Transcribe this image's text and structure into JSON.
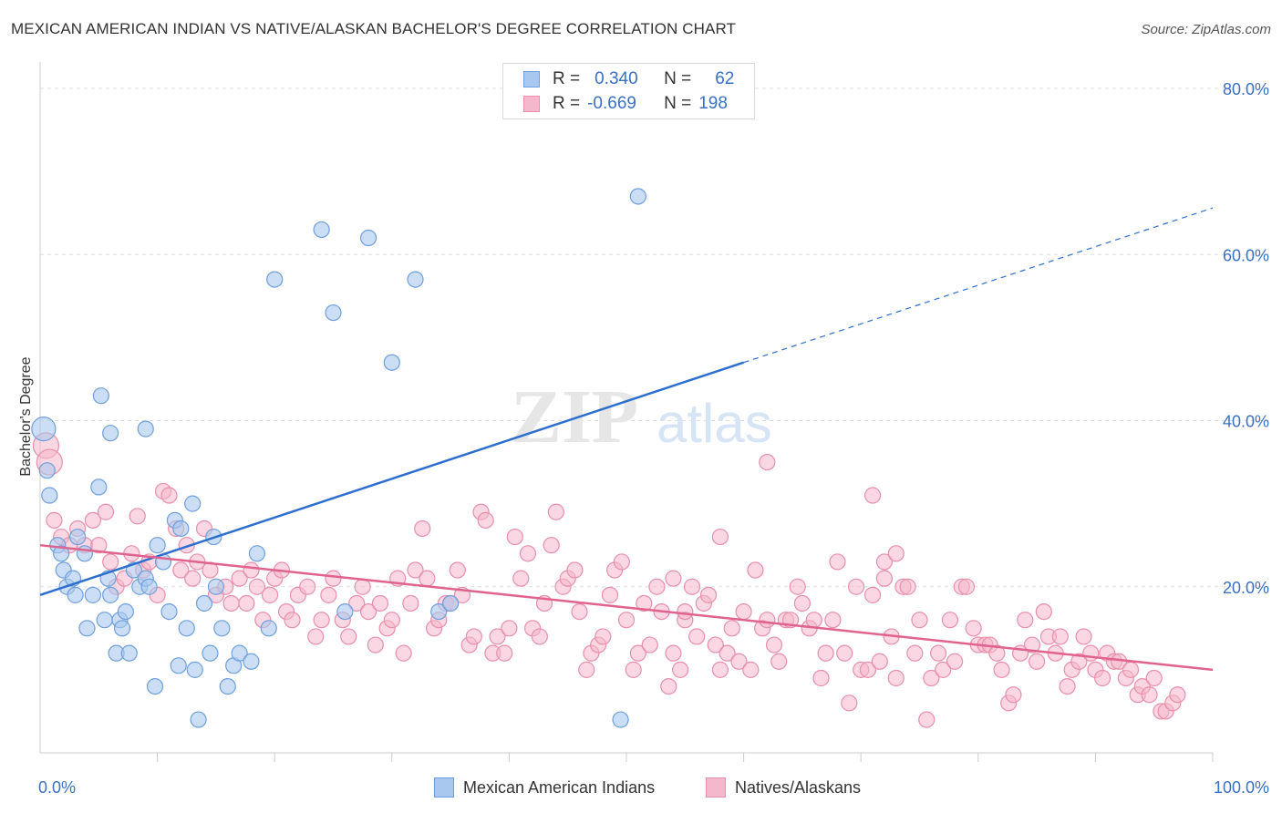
{
  "title": "MEXICAN AMERICAN INDIAN VS NATIVE/ALASKAN BACHELOR'S DEGREE CORRELATION CHART",
  "source": "Source: ZipAtlas.com",
  "watermark": {
    "zip": "ZIP",
    "atlas": "atlas"
  },
  "legend": {
    "rows": [
      {
        "r_label": "R =",
        "r_value": "0.340",
        "n_label": "N =",
        "n_value": "62"
      },
      {
        "r_label": "R =",
        "r_value": "-0.669",
        "n_label": "N =",
        "n_value": "198"
      }
    ]
  },
  "bottom_legend": {
    "series1": "Mexican American Indians",
    "series2": "Natives/Alaskans"
  },
  "colors": {
    "blue_fill": "#a9c8ef",
    "blue_stroke": "#6f9fdc",
    "blue_line": "#2e6fce",
    "pink_fill": "#f5b7cb",
    "pink_stroke": "#e78fab",
    "pink_line": "#e0628f",
    "grid": "#dddddd",
    "tick_text": "#3a70c2"
  },
  "chart_data": {
    "type": "scatter",
    "title": "MEXICAN AMERICAN INDIAN VS NATIVE/ALASKAN BACHELOR'S DEGREE CORRELATION CHART",
    "xlabel": "",
    "ylabel": "Bachelor's Degree",
    "xlim": [
      0,
      100
    ],
    "ylim": [
      0,
      80
    ],
    "x_ticks": [
      "0.0%",
      "100.0%"
    ],
    "y_ticks": [
      "20.0%",
      "40.0%",
      "60.0%",
      "80.0%"
    ],
    "y_tick_values": [
      20,
      40,
      60,
      80
    ],
    "grid": true,
    "series": [
      {
        "name": "Mexican American Indians",
        "R": 0.34,
        "N": 62,
        "trend": {
          "x0": 0,
          "y0": 19.0,
          "x1": 60,
          "y1": 47.0,
          "dash_x1": 100,
          "dash_y1": 65.6
        },
        "points": [
          [
            0.3,
            39
          ],
          [
            0.6,
            34
          ],
          [
            0.8,
            31
          ],
          [
            1.5,
            25
          ],
          [
            1.8,
            24
          ],
          [
            2,
            22
          ],
          [
            2.3,
            20
          ],
          [
            2.8,
            21
          ],
          [
            3,
            19
          ],
          [
            3.2,
            26
          ],
          [
            3.8,
            24
          ],
          [
            4,
            15
          ],
          [
            4.5,
            19
          ],
          [
            5,
            32
          ],
          [
            5.2,
            43
          ],
          [
            5.5,
            16
          ],
          [
            5.8,
            21
          ],
          [
            6,
            19
          ],
          [
            6.5,
            12
          ],
          [
            6.8,
            16
          ],
          [
            7,
            15
          ],
          [
            7.3,
            17
          ],
          [
            7.6,
            12
          ],
          [
            8,
            22
          ],
          [
            8.5,
            20
          ],
          [
            9,
            21
          ],
          [
            9.3,
            20
          ],
          [
            9.8,
            8
          ],
          [
            10,
            25
          ],
          [
            10.5,
            23
          ],
          [
            11,
            17
          ],
          [
            11.5,
            28
          ],
          [
            11.8,
            10.5
          ],
          [
            12,
            27
          ],
          [
            12.5,
            15
          ],
          [
            13,
            30
          ],
          [
            13.2,
            10
          ],
          [
            13.5,
            4
          ],
          [
            14,
            18
          ],
          [
            14.5,
            12
          ],
          [
            14.8,
            26
          ],
          [
            15,
            20
          ],
          [
            15.5,
            15
          ],
          [
            16,
            8
          ],
          [
            16.5,
            10.5
          ],
          [
            17,
            12
          ],
          [
            18,
            11
          ],
          [
            18.5,
            24
          ],
          [
            19.5,
            15
          ],
          [
            20,
            57
          ],
          [
            24,
            63
          ],
          [
            25,
            53
          ],
          [
            26,
            17
          ],
          [
            28,
            62
          ],
          [
            30,
            47
          ],
          [
            32,
            57
          ],
          [
            34,
            17
          ],
          [
            35,
            18
          ],
          [
            49.5,
            4
          ],
          [
            51,
            67
          ],
          [
            6,
            38.5
          ],
          [
            9,
            39
          ]
        ]
      },
      {
        "name": "Natives/Alaskans",
        "R": -0.669,
        "N": 198,
        "trend": {
          "x0": 0,
          "y0": 25,
          "x1": 100,
          "y1": 10
        },
        "points": [
          [
            0.5,
            37
          ],
          [
            0.8,
            35
          ],
          [
            1.2,
            28
          ],
          [
            1.8,
            26
          ],
          [
            2.5,
            25
          ],
          [
            3.2,
            27
          ],
          [
            3.8,
            25
          ],
          [
            4.5,
            28
          ],
          [
            5,
            25
          ],
          [
            5.6,
            29
          ],
          [
            6,
            23
          ],
          [
            6.5,
            20
          ],
          [
            7.2,
            21
          ],
          [
            7.8,
            24
          ],
          [
            8.3,
            28.5
          ],
          [
            8.8,
            22
          ],
          [
            9.3,
            23
          ],
          [
            10,
            19
          ],
          [
            10.5,
            31.5
          ],
          [
            11,
            31
          ],
          [
            11.6,
            27
          ],
          [
            12,
            22
          ],
          [
            12.5,
            25
          ],
          [
            13,
            21
          ],
          [
            13.4,
            23
          ],
          [
            14,
            27
          ],
          [
            14.5,
            22
          ],
          [
            15,
            19
          ],
          [
            15.8,
            20
          ],
          [
            16.3,
            18
          ],
          [
            17,
            21
          ],
          [
            17.6,
            18
          ],
          [
            18,
            22
          ],
          [
            18.5,
            20
          ],
          [
            19,
            16
          ],
          [
            19.6,
            19
          ],
          [
            20,
            21
          ],
          [
            20.6,
            22
          ],
          [
            21,
            17
          ],
          [
            21.5,
            16
          ],
          [
            22,
            19
          ],
          [
            22.8,
            20
          ],
          [
            23.5,
            14
          ],
          [
            24,
            16
          ],
          [
            24.6,
            19
          ],
          [
            25,
            21
          ],
          [
            25.8,
            16
          ],
          [
            26.3,
            14
          ],
          [
            27,
            18
          ],
          [
            27.5,
            20
          ],
          [
            28,
            17
          ],
          [
            28.6,
            13
          ],
          [
            29,
            18
          ],
          [
            29.6,
            15
          ],
          [
            30,
            16
          ],
          [
            30.5,
            21
          ],
          [
            31,
            12
          ],
          [
            31.6,
            18
          ],
          [
            32,
            22
          ],
          [
            32.6,
            27
          ],
          [
            33,
            21
          ],
          [
            33.6,
            15
          ],
          [
            34,
            16
          ],
          [
            34.6,
            18
          ],
          [
            35,
            18
          ],
          [
            35.6,
            22
          ],
          [
            36,
            19
          ],
          [
            36.6,
            13
          ],
          [
            37,
            14
          ],
          [
            37.6,
            29
          ],
          [
            38,
            28
          ],
          [
            38.6,
            12
          ],
          [
            39,
            14
          ],
          [
            39.6,
            12
          ],
          [
            40,
            15
          ],
          [
            40.5,
            26
          ],
          [
            41,
            21
          ],
          [
            41.6,
            24
          ],
          [
            42,
            15
          ],
          [
            42.6,
            14
          ],
          [
            43,
            18
          ],
          [
            43.6,
            25
          ],
          [
            44,
            29
          ],
          [
            44.6,
            20
          ],
          [
            45,
            21
          ],
          [
            45.6,
            22
          ],
          [
            46,
            17
          ],
          [
            46.6,
            10
          ],
          [
            47,
            12
          ],
          [
            47.6,
            13
          ],
          [
            48,
            14
          ],
          [
            48.6,
            19
          ],
          [
            49,
            22
          ],
          [
            49.6,
            23
          ],
          [
            50,
            16
          ],
          [
            50.6,
            10
          ],
          [
            51,
            12
          ],
          [
            51.5,
            18
          ],
          [
            52,
            13
          ],
          [
            52.6,
            20
          ],
          [
            53,
            17
          ],
          [
            53.6,
            8
          ],
          [
            54,
            12
          ],
          [
            54.6,
            10
          ],
          [
            55,
            16
          ],
          [
            55.6,
            20
          ],
          [
            56,
            14
          ],
          [
            56.6,
            18
          ],
          [
            57,
            19
          ],
          [
            57.6,
            13
          ],
          [
            58,
            10
          ],
          [
            58.6,
            12
          ],
          [
            59,
            15
          ],
          [
            59.6,
            11
          ],
          [
            60,
            17
          ],
          [
            60.6,
            10
          ],
          [
            61,
            22
          ],
          [
            61.6,
            15
          ],
          [
            62,
            16
          ],
          [
            62.6,
            13
          ],
          [
            63,
            11
          ],
          [
            63.6,
            16
          ],
          [
            64,
            16
          ],
          [
            64.6,
            20
          ],
          [
            65,
            18
          ],
          [
            65.6,
            15
          ],
          [
            66,
            16
          ],
          [
            66.6,
            9
          ],
          [
            67,
            12
          ],
          [
            67.6,
            16
          ],
          [
            68,
            23
          ],
          [
            68.6,
            12
          ],
          [
            69,
            6
          ],
          [
            69.6,
            20
          ],
          [
            70,
            10
          ],
          [
            70.6,
            10
          ],
          [
            71,
            19
          ],
          [
            71.6,
            11
          ],
          [
            72,
            21
          ],
          [
            72.6,
            14
          ],
          [
            73,
            9
          ],
          [
            73.6,
            20
          ],
          [
            74,
            20
          ],
          [
            74.6,
            12
          ],
          [
            75,
            16
          ],
          [
            75.6,
            4
          ],
          [
            76,
            9
          ],
          [
            76.6,
            12
          ],
          [
            77,
            10
          ],
          [
            77.6,
            16
          ],
          [
            78,
            11
          ],
          [
            78.6,
            20
          ],
          [
            79,
            20
          ],
          [
            79.6,
            15
          ],
          [
            80,
            13
          ],
          [
            80.6,
            13
          ],
          [
            81,
            13
          ],
          [
            81.6,
            12
          ],
          [
            82,
            10
          ],
          [
            82.6,
            6
          ],
          [
            83,
            7
          ],
          [
            83.6,
            12
          ],
          [
            84,
            16
          ],
          [
            84.6,
            13
          ],
          [
            85,
            11
          ],
          [
            85.6,
            17
          ],
          [
            86,
            14
          ],
          [
            86.6,
            12
          ],
          [
            87,
            14
          ],
          [
            87.6,
            8
          ],
          [
            88,
            10
          ],
          [
            88.6,
            11
          ],
          [
            89,
            14
          ],
          [
            89.6,
            12
          ],
          [
            90,
            10
          ],
          [
            90.6,
            9
          ],
          [
            91,
            12
          ],
          [
            91.6,
            11
          ],
          [
            92,
            11
          ],
          [
            92.6,
            9
          ],
          [
            93,
            10
          ],
          [
            93.6,
            7
          ],
          [
            94,
            8
          ],
          [
            94.6,
            7
          ],
          [
            95,
            9
          ],
          [
            95.6,
            5
          ],
          [
            96,
            5
          ],
          [
            96.6,
            6
          ],
          [
            97,
            7
          ],
          [
            54,
            21
          ],
          [
            55,
            17
          ],
          [
            58,
            26
          ],
          [
            62,
            35
          ],
          [
            71,
            31
          ],
          [
            72,
            23
          ],
          [
            73,
            24
          ]
        ]
      }
    ]
  }
}
